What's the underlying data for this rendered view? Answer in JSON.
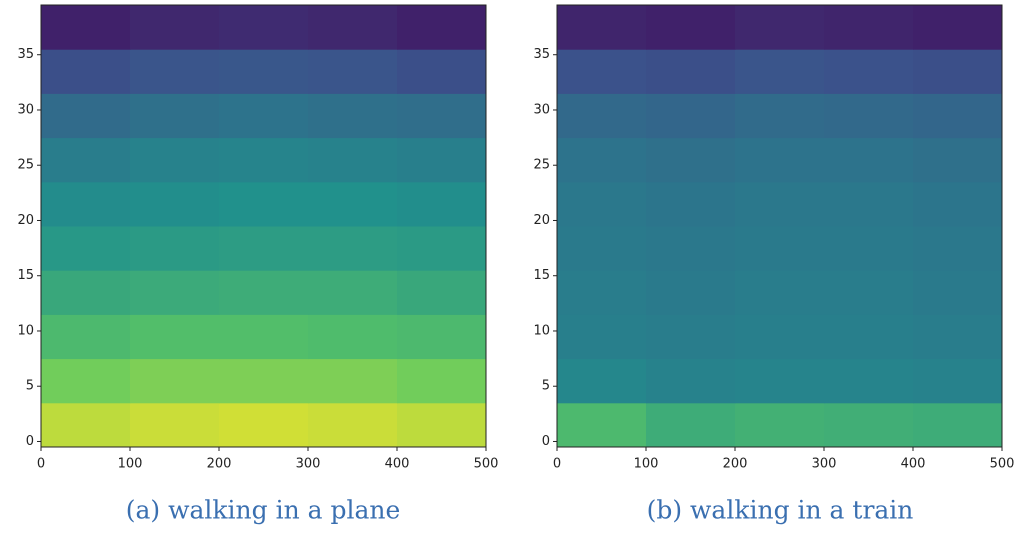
{
  "chart_data": [
    {
      "type": "heatmap",
      "caption": "(a) walking in a plane",
      "colormap": "viridis",
      "xlim": [
        0,
        500
      ],
      "ylim": [
        -0.5,
        39.5
      ],
      "xticks": [
        0,
        100,
        200,
        300,
        400,
        500
      ],
      "yticks": [
        0,
        5,
        10,
        15,
        20,
        25,
        30,
        35
      ],
      "x_edges": [
        0,
        100,
        200,
        300,
        400,
        500
      ],
      "y_edges": [
        -0.5,
        3.5,
        7.5,
        11.5,
        15.5,
        19.5,
        23.5,
        27.5,
        31.5,
        35.5,
        39.5
      ],
      "z": [
        [
          0.9,
          0.92,
          0.93,
          0.92,
          0.9
        ],
        [
          0.78,
          0.8,
          0.8,
          0.8,
          0.78
        ],
        [
          0.68,
          0.7,
          0.7,
          0.69,
          0.68
        ],
        [
          0.6,
          0.61,
          0.62,
          0.62,
          0.6
        ],
        [
          0.53,
          0.54,
          0.55,
          0.55,
          0.54
        ],
        [
          0.48,
          0.49,
          0.5,
          0.5,
          0.49
        ],
        [
          0.42,
          0.44,
          0.45,
          0.44,
          0.43
        ],
        [
          0.35,
          0.37,
          0.38,
          0.37,
          0.36
        ],
        [
          0.24,
          0.26,
          0.27,
          0.26,
          0.24
        ],
        [
          0.1,
          0.12,
          0.13,
          0.12,
          0.1
        ]
      ]
    },
    {
      "type": "heatmap",
      "caption": "(b) walking in a train",
      "colormap": "viridis",
      "xlim": [
        0,
        500
      ],
      "ylim": [
        -0.5,
        39.5
      ],
      "xticks": [
        0,
        100,
        200,
        300,
        400,
        500
      ],
      "yticks": [
        0,
        5,
        10,
        15,
        20,
        25,
        30,
        35
      ],
      "x_edges": [
        0,
        100,
        200,
        300,
        400,
        500
      ],
      "y_edges": [
        -0.5,
        3.5,
        7.5,
        11.5,
        15.5,
        19.5,
        23.5,
        27.5,
        31.5,
        35.5,
        39.5
      ],
      "z": [
        [
          0.68,
          0.62,
          0.64,
          0.63,
          0.62
        ],
        [
          0.46,
          0.44,
          0.45,
          0.45,
          0.44
        ],
        [
          0.43,
          0.42,
          0.43,
          0.43,
          0.42
        ],
        [
          0.42,
          0.41,
          0.42,
          0.42,
          0.41
        ],
        [
          0.41,
          0.4,
          0.41,
          0.41,
          0.4
        ],
        [
          0.4,
          0.39,
          0.4,
          0.4,
          0.39
        ],
        [
          0.38,
          0.37,
          0.38,
          0.38,
          0.37
        ],
        [
          0.34,
          0.33,
          0.35,
          0.34,
          0.33
        ],
        [
          0.25,
          0.24,
          0.26,
          0.25,
          0.24
        ],
        [
          0.11,
          0.1,
          0.12,
          0.11,
          0.1
        ]
      ]
    }
  ]
}
